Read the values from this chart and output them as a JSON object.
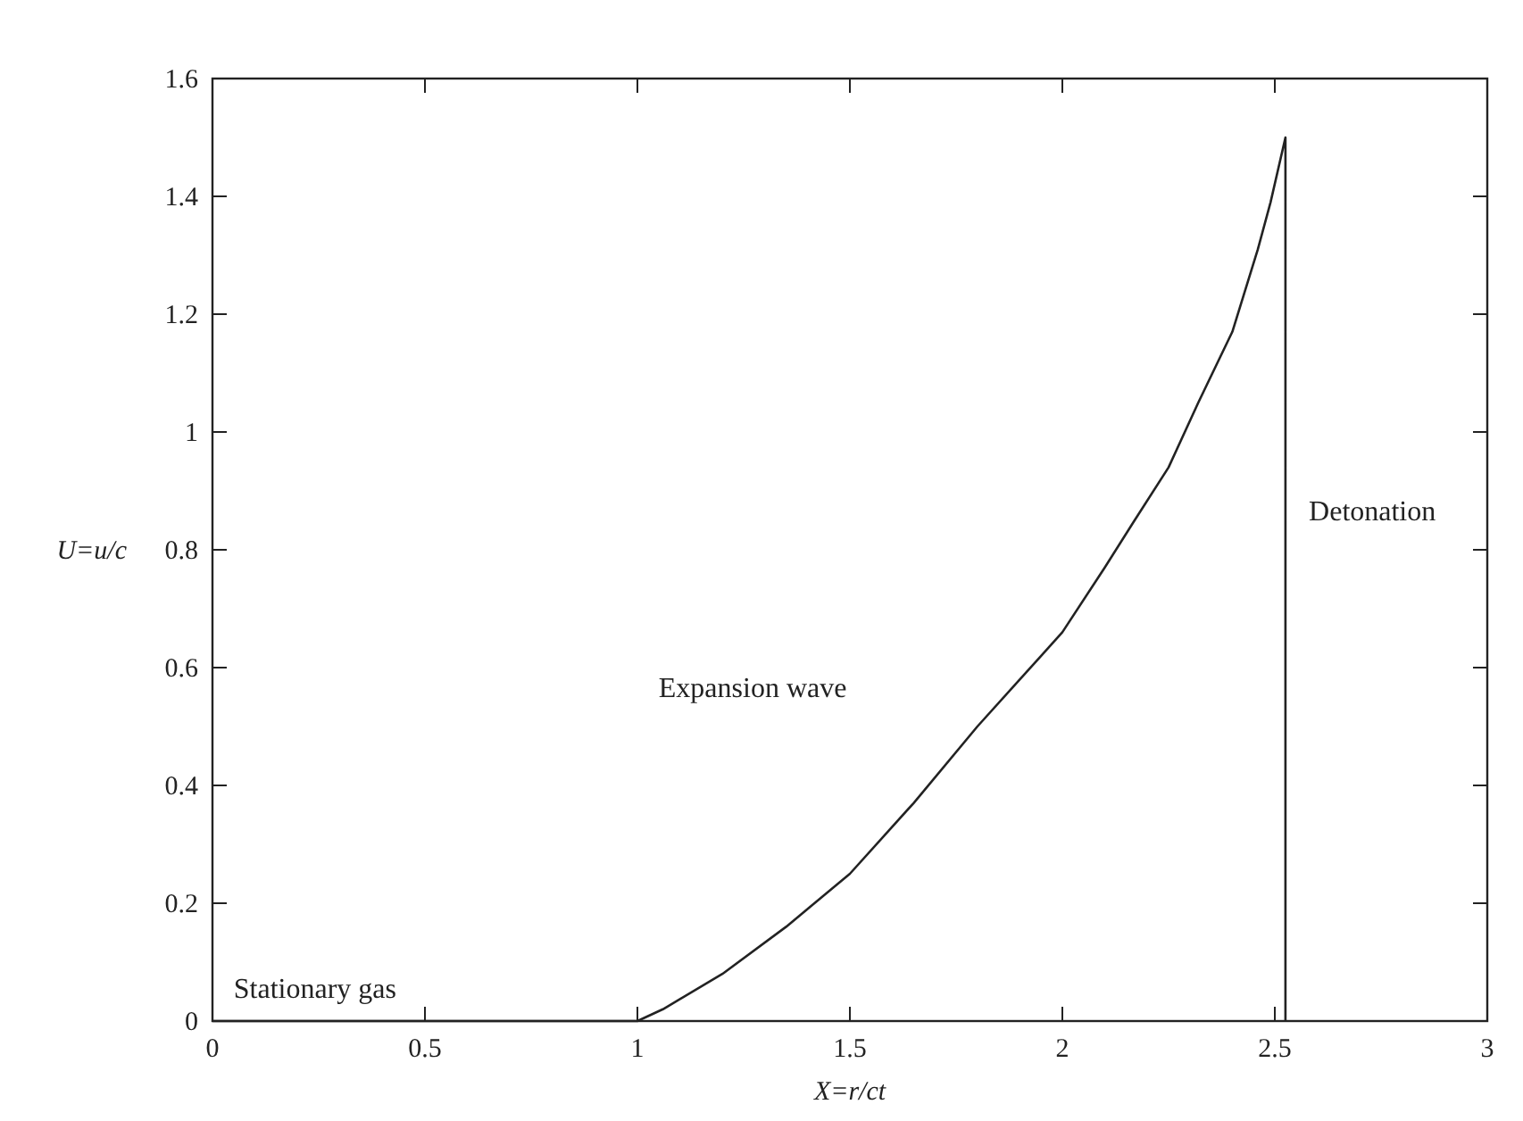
{
  "chart_data": {
    "type": "line",
    "xlabel": "X=r/ct",
    "ylabel": "U=u/c",
    "series": [
      {
        "color": "#222222",
        "x": [
          0,
          1,
          1.06,
          1.2,
          1.35,
          1.5,
          1.65,
          1.8,
          1.95,
          2,
          2.1,
          2.17,
          2.25,
          2.32,
          2.4,
          2.46,
          2.49,
          2.525,
          2.525
        ],
        "values": [
          0,
          0,
          0.02,
          0.08,
          0.16,
          0.25,
          0.37,
          0.5,
          0.62,
          0.66,
          0.77,
          0.85,
          0.94,
          1.05,
          1.17,
          1.31,
          1.39,
          1.5,
          0
        ]
      }
    ],
    "xlim": [
      0,
      3
    ],
    "xticks": [
      0,
      0.5,
      1,
      1.5,
      2,
      2.5,
      3
    ],
    "ylim": [
      0,
      1.6
    ],
    "yticks": [
      0,
      0.2,
      0.4,
      0.6,
      0.8,
      1,
      1.2,
      1.4,
      1.6
    ],
    "annotations": [
      "Stationary gas",
      "Expansion wave",
      "Detonation"
    ],
    "grid": false,
    "marker": "none",
    "line_style": "solid"
  }
}
